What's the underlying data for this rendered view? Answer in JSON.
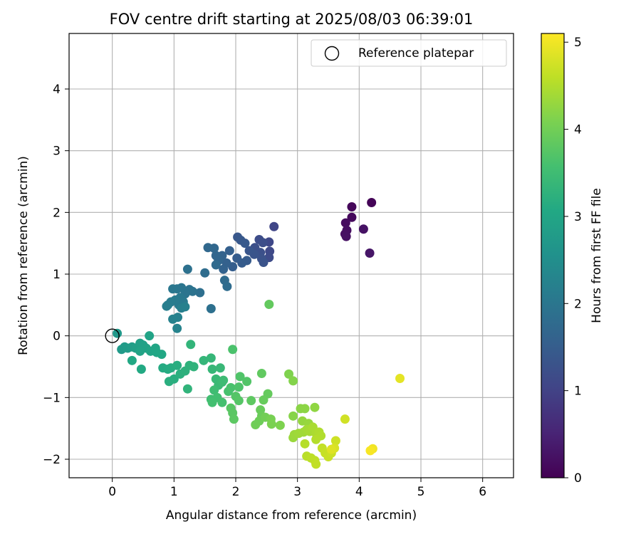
{
  "chart_data": {
    "type": "scatter",
    "title": "FOV centre drift starting at 2025/08/03 06:39:01",
    "xlabel": "Angular distance from reference (arcmin)",
    "ylabel": "Rotation from reference (arcmin)",
    "xlim": [
      -0.7,
      6.5
    ],
    "ylim": [
      -2.3,
      4.9
    ],
    "xticks": [
      0,
      1,
      2,
      3,
      4,
      5,
      6
    ],
    "yticks": [
      -2,
      -1,
      0,
      1,
      2,
      3,
      4
    ],
    "grid": true,
    "legend": {
      "position": "upper right",
      "entries": [
        "Reference platepar"
      ]
    },
    "reference_point": {
      "x": 0.0,
      "y": 0.0,
      "label": "Reference platepar"
    },
    "colorbar": {
      "label": "Hours from first FF file",
      "colormap": "viridis",
      "range": [
        0,
        5.1
      ],
      "ticks": [
        0,
        1,
        2,
        3,
        4,
        5
      ]
    },
    "points": [
      {
        "x": 4.2,
        "y": 2.16,
        "t": 0.05
      },
      {
        "x": 3.88,
        "y": 2.09,
        "t": 0.1
      },
      {
        "x": 3.88,
        "y": 1.92,
        "t": 0.12
      },
      {
        "x": 3.78,
        "y": 1.83,
        "t": 0.15
      },
      {
        "x": 3.8,
        "y": 1.71,
        "t": 0.18
      },
      {
        "x": 3.77,
        "y": 1.65,
        "t": 0.2
      },
      {
        "x": 3.79,
        "y": 1.61,
        "t": 0.22
      },
      {
        "x": 4.07,
        "y": 1.73,
        "t": 0.25
      },
      {
        "x": 4.17,
        "y": 1.34,
        "t": 0.3
      },
      {
        "x": 2.62,
        "y": 1.77,
        "t": 1.05
      },
      {
        "x": 2.54,
        "y": 1.52,
        "t": 1.1
      },
      {
        "x": 2.55,
        "y": 1.37,
        "t": 1.12
      },
      {
        "x": 2.54,
        "y": 1.27,
        "t": 1.15
      },
      {
        "x": 2.38,
        "y": 1.56,
        "t": 1.18
      },
      {
        "x": 2.44,
        "y": 1.51,
        "t": 1.2
      },
      {
        "x": 2.31,
        "y": 1.43,
        "t": 1.22
      },
      {
        "x": 2.4,
        "y": 1.35,
        "t": 1.25
      },
      {
        "x": 2.42,
        "y": 1.25,
        "t": 1.28
      },
      {
        "x": 2.45,
        "y": 1.19,
        "t": 1.3
      },
      {
        "x": 2.3,
        "y": 1.32,
        "t": 1.32
      },
      {
        "x": 2.22,
        "y": 1.38,
        "t": 1.35
      },
      {
        "x": 2.03,
        "y": 1.6,
        "t": 1.38
      },
      {
        "x": 2.08,
        "y": 1.55,
        "t": 1.4
      },
      {
        "x": 2.15,
        "y": 1.5,
        "t": 1.42
      },
      {
        "x": 2.18,
        "y": 1.22,
        "t": 1.45
      },
      {
        "x": 2.1,
        "y": 1.18,
        "t": 1.48
      },
      {
        "x": 2.02,
        "y": 1.26,
        "t": 1.5
      },
      {
        "x": 1.95,
        "y": 1.12,
        "t": 1.52
      },
      {
        "x": 1.9,
        "y": 1.38,
        "t": 1.55
      },
      {
        "x": 1.85,
        "y": 1.18,
        "t": 1.58
      },
      {
        "x": 1.8,
        "y": 1.08,
        "t": 1.6
      },
      {
        "x": 1.78,
        "y": 1.3,
        "t": 1.62
      },
      {
        "x": 1.72,
        "y": 1.22,
        "t": 1.65
      },
      {
        "x": 1.68,
        "y": 1.3,
        "t": 1.68
      },
      {
        "x": 1.65,
        "y": 1.42,
        "t": 1.7
      },
      {
        "x": 1.55,
        "y": 1.43,
        "t": 1.72
      },
      {
        "x": 1.68,
        "y": 1.15,
        "t": 1.75
      },
      {
        "x": 1.82,
        "y": 0.9,
        "t": 1.78
      },
      {
        "x": 1.86,
        "y": 0.8,
        "t": 1.8
      },
      {
        "x": 1.5,
        "y": 1.02,
        "t": 1.82
      },
      {
        "x": 1.42,
        "y": 0.7,
        "t": 1.85
      },
      {
        "x": 1.6,
        "y": 0.44,
        "t": 1.88
      },
      {
        "x": 1.22,
        "y": 1.08,
        "t": 1.9
      },
      {
        "x": 1.3,
        "y": 0.72,
        "t": 1.92
      },
      {
        "x": 1.25,
        "y": 0.75,
        "t": 1.94
      },
      {
        "x": 1.18,
        "y": 0.68,
        "t": 1.96
      },
      {
        "x": 1.12,
        "y": 0.78,
        "t": 1.98
      },
      {
        "x": 1.05,
        "y": 0.76,
        "t": 2.0
      },
      {
        "x": 0.98,
        "y": 0.76,
        "t": 2.02
      },
      {
        "x": 1.1,
        "y": 0.62,
        "t": 2.04
      },
      {
        "x": 1.15,
        "y": 0.55,
        "t": 2.06
      },
      {
        "x": 1.08,
        "y": 0.5,
        "t": 2.08
      },
      {
        "x": 1.02,
        "y": 0.58,
        "t": 2.1
      },
      {
        "x": 0.95,
        "y": 0.55,
        "t": 2.12
      },
      {
        "x": 0.9,
        "y": 0.5,
        "t": 2.14
      },
      {
        "x": 0.88,
        "y": 0.48,
        "t": 2.16
      },
      {
        "x": 1.12,
        "y": 0.45,
        "t": 2.18
      },
      {
        "x": 1.18,
        "y": 0.47,
        "t": 2.2
      },
      {
        "x": 1.06,
        "y": 0.3,
        "t": 2.22
      },
      {
        "x": 0.98,
        "y": 0.27,
        "t": 2.24
      },
      {
        "x": 1.05,
        "y": 0.12,
        "t": 2.26
      },
      {
        "x": 0.08,
        "y": 0.04,
        "t": 2.7
      },
      {
        "x": 0.15,
        "y": -0.22,
        "t": 2.75
      },
      {
        "x": 0.2,
        "y": -0.18,
        "t": 2.78
      },
      {
        "x": 0.25,
        "y": -0.2,
        "t": 2.8
      },
      {
        "x": 0.32,
        "y": -0.18,
        "t": 2.82
      },
      {
        "x": 0.38,
        "y": -0.2,
        "t": 2.85
      },
      {
        "x": 0.45,
        "y": -0.12,
        "t": 2.88
      },
      {
        "x": 0.5,
        "y": -0.15,
        "t": 2.9
      },
      {
        "x": 0.55,
        "y": -0.2,
        "t": 2.92
      },
      {
        "x": 0.45,
        "y": -0.25,
        "t": 2.94
      },
      {
        "x": 0.6,
        "y": 0.0,
        "t": 2.96
      },
      {
        "x": 0.62,
        "y": -0.25,
        "t": 2.98
      },
      {
        "x": 0.7,
        "y": -0.2,
        "t": 3.0
      },
      {
        "x": 0.72,
        "y": -0.27,
        "t": 3.02
      },
      {
        "x": 0.8,
        "y": -0.3,
        "t": 3.04
      },
      {
        "x": 0.32,
        "y": -0.4,
        "t": 3.06
      },
      {
        "x": 0.47,
        "y": -0.54,
        "t": 3.08
      },
      {
        "x": 0.82,
        "y": -0.52,
        "t": 3.1
      },
      {
        "x": 0.9,
        "y": -0.54,
        "t": 3.12
      },
      {
        "x": 0.95,
        "y": -0.52,
        "t": 3.14
      },
      {
        "x": 1.05,
        "y": -0.48,
        "t": 3.16
      },
      {
        "x": 1.0,
        "y": -0.7,
        "t": 3.18
      },
      {
        "x": 0.92,
        "y": -0.74,
        "t": 3.2
      },
      {
        "x": 1.1,
        "y": -0.62,
        "t": 3.22
      },
      {
        "x": 1.18,
        "y": -0.57,
        "t": 3.24
      },
      {
        "x": 1.25,
        "y": -0.48,
        "t": 3.26
      },
      {
        "x": 1.32,
        "y": -0.5,
        "t": 3.28
      },
      {
        "x": 1.22,
        "y": -0.86,
        "t": 3.3
      },
      {
        "x": 1.27,
        "y": -0.14,
        "t": 3.32
      },
      {
        "x": 1.48,
        "y": -0.4,
        "t": 3.34
      },
      {
        "x": 1.6,
        "y": -0.36,
        "t": 3.36
      },
      {
        "x": 1.62,
        "y": -0.54,
        "t": 3.38
      },
      {
        "x": 1.75,
        "y": -0.52,
        "t": 3.4
      },
      {
        "x": 1.68,
        "y": -0.7,
        "t": 3.42
      },
      {
        "x": 1.72,
        "y": -0.8,
        "t": 3.44
      },
      {
        "x": 1.78,
        "y": -0.75,
        "t": 3.46
      },
      {
        "x": 1.8,
        "y": -0.72,
        "t": 3.48
      },
      {
        "x": 1.65,
        "y": -0.88,
        "t": 3.5
      },
      {
        "x": 1.6,
        "y": -1.03,
        "t": 3.52
      },
      {
        "x": 1.7,
        "y": -1.0,
        "t": 3.54
      },
      {
        "x": 1.62,
        "y": -1.08,
        "t": 3.56
      },
      {
        "x": 1.78,
        "y": -1.08,
        "t": 3.58
      },
      {
        "x": 1.88,
        "y": -0.9,
        "t": 3.6
      },
      {
        "x": 1.92,
        "y": -0.84,
        "t": 3.62
      },
      {
        "x": 1.95,
        "y": -0.22,
        "t": 3.64
      },
      {
        "x": 2.05,
        "y": -0.83,
        "t": 3.66
      },
      {
        "x": 2.07,
        "y": -0.66,
        "t": 3.68
      },
      {
        "x": 2.18,
        "y": -0.74,
        "t": 3.7
      },
      {
        "x": 2.0,
        "y": -0.98,
        "t": 3.72
      },
      {
        "x": 2.05,
        "y": -1.05,
        "t": 3.74
      },
      {
        "x": 1.92,
        "y": -1.17,
        "t": 3.76
      },
      {
        "x": 1.95,
        "y": -1.25,
        "t": 3.78
      },
      {
        "x": 1.97,
        "y": -1.35,
        "t": 3.8
      },
      {
        "x": 2.25,
        "y": -1.05,
        "t": 3.82
      },
      {
        "x": 2.42,
        "y": -0.61,
        "t": 3.84
      },
      {
        "x": 2.54,
        "y": 0.51,
        "t": 3.86
      },
      {
        "x": 2.52,
        "y": -0.94,
        "t": 3.88
      },
      {
        "x": 2.45,
        "y": -1.04,
        "t": 3.9
      },
      {
        "x": 2.4,
        "y": -1.2,
        "t": 3.92
      },
      {
        "x": 2.42,
        "y": -1.3,
        "t": 3.94
      },
      {
        "x": 2.38,
        "y": -1.38,
        "t": 3.96
      },
      {
        "x": 2.32,
        "y": -1.44,
        "t": 3.98
      },
      {
        "x": 2.48,
        "y": -1.32,
        "t": 4.0
      },
      {
        "x": 2.57,
        "y": -1.35,
        "t": 4.05
      },
      {
        "x": 2.58,
        "y": -1.43,
        "t": 4.08
      },
      {
        "x": 2.72,
        "y": -1.45,
        "t": 4.1
      },
      {
        "x": 2.86,
        "y": -0.62,
        "t": 4.12
      },
      {
        "x": 2.93,
        "y": -0.73,
        "t": 4.15
      },
      {
        "x": 2.93,
        "y": -1.3,
        "t": 4.18
      },
      {
        "x": 3.05,
        "y": -1.18,
        "t": 4.2
      },
      {
        "x": 3.12,
        "y": -1.18,
        "t": 4.22
      },
      {
        "x": 3.28,
        "y": -1.16,
        "t": 4.25
      },
      {
        "x": 3.08,
        "y": -1.38,
        "t": 4.28
      },
      {
        "x": 3.18,
        "y": -1.42,
        "t": 4.3
      },
      {
        "x": 2.93,
        "y": -1.65,
        "t": 4.32
      },
      {
        "x": 2.95,
        "y": -1.6,
        "t": 4.34
      },
      {
        "x": 3.02,
        "y": -1.58,
        "t": 4.36
      },
      {
        "x": 3.1,
        "y": -1.56,
        "t": 4.38
      },
      {
        "x": 3.15,
        "y": -1.52,
        "t": 4.4
      },
      {
        "x": 3.2,
        "y": -1.55,
        "t": 4.42
      },
      {
        "x": 3.25,
        "y": -1.48,
        "t": 4.44
      },
      {
        "x": 3.3,
        "y": -1.58,
        "t": 4.46
      },
      {
        "x": 3.35,
        "y": -1.56,
        "t": 4.48
      },
      {
        "x": 3.38,
        "y": -1.62,
        "t": 4.5
      },
      {
        "x": 3.3,
        "y": -1.68,
        "t": 4.52
      },
      {
        "x": 3.12,
        "y": -1.75,
        "t": 4.54
      },
      {
        "x": 3.15,
        "y": -1.95,
        "t": 4.56
      },
      {
        "x": 3.22,
        "y": -1.98,
        "t": 4.58
      },
      {
        "x": 3.28,
        "y": -2.02,
        "t": 4.6
      },
      {
        "x": 3.3,
        "y": -2.08,
        "t": 4.62
      },
      {
        "x": 3.4,
        "y": -1.82,
        "t": 4.64
      },
      {
        "x": 3.45,
        "y": -1.9,
        "t": 4.66
      },
      {
        "x": 3.5,
        "y": -1.96,
        "t": 4.68
      },
      {
        "x": 3.55,
        "y": -1.9,
        "t": 4.7
      },
      {
        "x": 3.62,
        "y": -1.7,
        "t": 4.72
      },
      {
        "x": 3.77,
        "y": -1.35,
        "t": 4.74
      },
      {
        "x": 3.6,
        "y": -1.82,
        "t": 4.8
      },
      {
        "x": 3.55,
        "y": -1.84,
        "t": 4.85
      },
      {
        "x": 4.66,
        "y": -0.69,
        "t": 4.9
      },
      {
        "x": 4.22,
        "y": -1.83,
        "t": 5.0
      },
      {
        "x": 4.18,
        "y": -1.86,
        "t": 5.05
      }
    ]
  }
}
